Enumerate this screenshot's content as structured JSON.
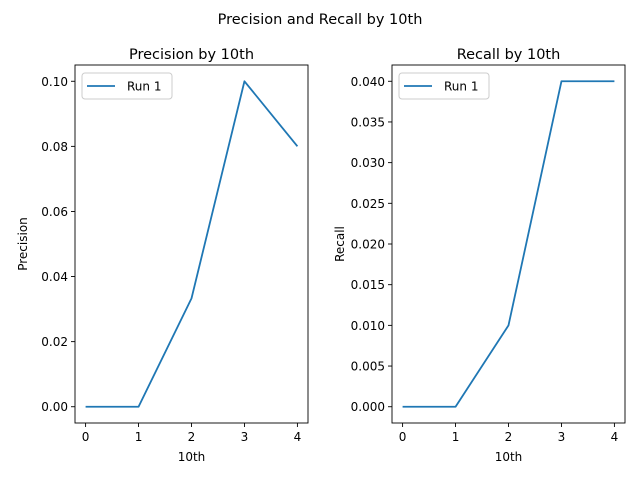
{
  "figure": {
    "suptitle": "Precision and Recall by 10th"
  },
  "colors": {
    "series": "#1f77b4",
    "axis": "#000000",
    "legend_border": "#cccccc"
  },
  "chart_data": [
    {
      "type": "line",
      "title": "Precision by 10th",
      "xlabel": "10th",
      "ylabel": "Precision",
      "x": [
        0,
        1,
        2,
        3,
        4
      ],
      "xlim": [
        -0.2,
        4.2
      ],
      "ylim": [
        -0.005,
        0.105
      ],
      "xticks": [
        "0",
        "1",
        "2",
        "3",
        "4"
      ],
      "xtick_values": [
        0,
        1,
        2,
        3,
        4
      ],
      "yticks": [
        "0.00",
        "0.02",
        "0.04",
        "0.06",
        "0.08",
        "0.10"
      ],
      "ytick_values": [
        0,
        0.02,
        0.04,
        0.06,
        0.08,
        0.1
      ],
      "series": [
        {
          "name": "Run 1",
          "values": [
            0.0,
            0.0,
            0.0333,
            0.1,
            0.08
          ]
        }
      ],
      "legend": "upper-left"
    },
    {
      "type": "line",
      "title": "Recall by 10th",
      "xlabel": "10th",
      "ylabel": "Recall",
      "x": [
        0,
        1,
        2,
        3,
        4
      ],
      "xlim": [
        -0.2,
        4.2
      ],
      "ylim": [
        -0.002,
        0.042
      ],
      "xticks": [
        "0",
        "1",
        "2",
        "3",
        "4"
      ],
      "xtick_values": [
        0,
        1,
        2,
        3,
        4
      ],
      "yticks": [
        "0.000",
        "0.005",
        "0.010",
        "0.015",
        "0.020",
        "0.025",
        "0.030",
        "0.035",
        "0.040"
      ],
      "ytick_values": [
        0,
        0.005,
        0.01,
        0.015,
        0.02,
        0.025,
        0.03,
        0.035,
        0.04
      ],
      "series": [
        {
          "name": "Run 1",
          "values": [
            0.0,
            0.0,
            0.01,
            0.04,
            0.04
          ]
        }
      ],
      "legend": "upper-left"
    }
  ]
}
